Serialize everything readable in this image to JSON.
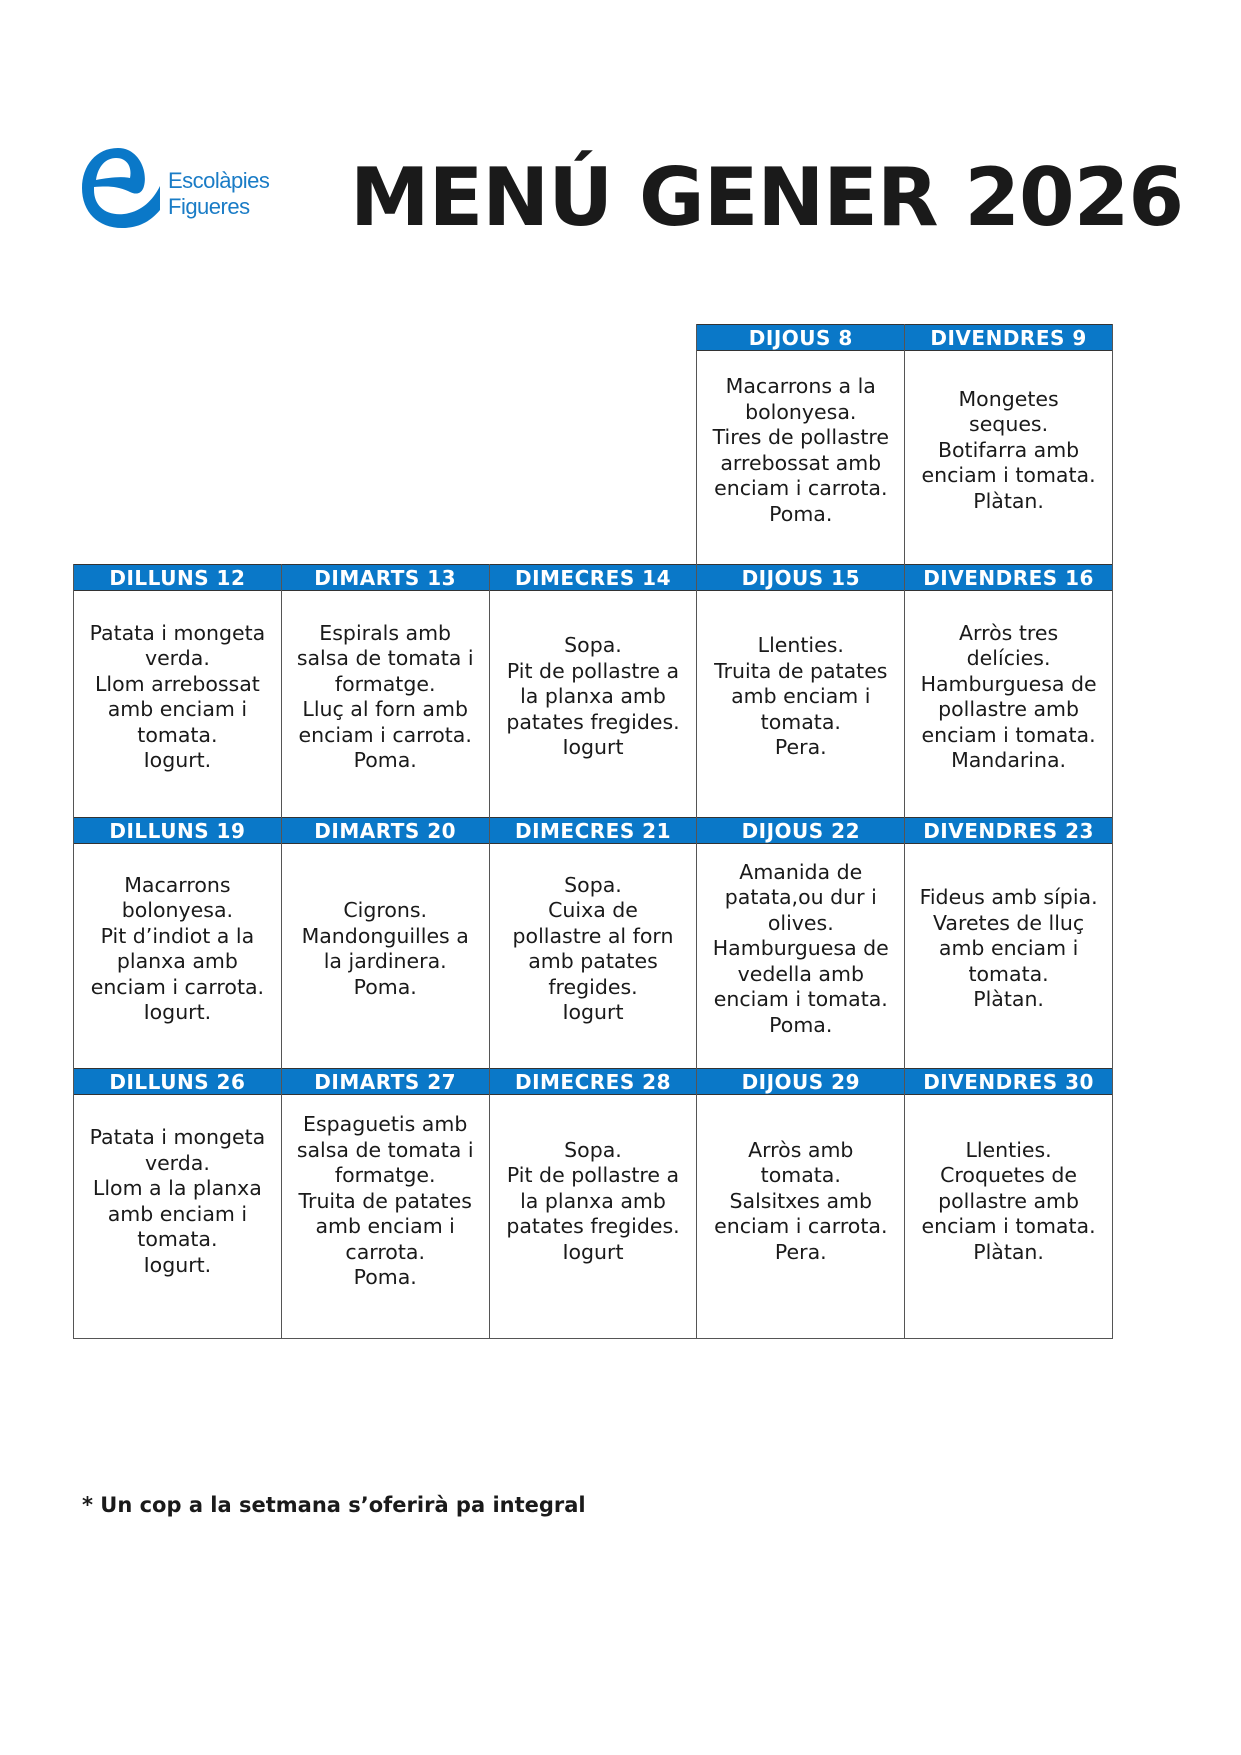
{
  "logo": {
    "line1": "Escolàpies",
    "line2": "Figueres",
    "color": "#0a78c8"
  },
  "title": "MENÚ GENER 2026",
  "accent_color": "#0a78c8",
  "weeks": [
    {
      "days": [
        null,
        null,
        null,
        {
          "header": "DIJOUS 8",
          "menu": "Macarrons a la\nbolonyesa.\nTires de pollastre\narrebossat amb\nenciam i carrota.\nPoma."
        },
        {
          "header": "DIVENDRES 9",
          "menu": "Mongetes\nseques.\nBotifarra amb\nenciam i tomata.\nPlàtan."
        }
      ]
    },
    {
      "days": [
        {
          "header": "DILLUNS 12",
          "menu": "Patata i mongeta\nverda.\nLlom arrebossat\namb enciam i\ntomata.\nIogurt."
        },
        {
          "header": "DIMARTS 13",
          "menu": "Espirals amb\nsalsa de tomata i\nformatge.\nLluç al forn amb\nenciam i carrota.\nPoma."
        },
        {
          "header": "DIMECRES 14",
          "menu": "Sopa.\nPit de pollastre a\nla planxa amb\npatates fregides.\nIogurt"
        },
        {
          "header": "DIJOUS 15",
          "menu": "Llenties.\nTruita de patates\namb enciam i\ntomata.\nPera."
        },
        {
          "header": "DIVENDRES 16",
          "menu": "Arròs tres\ndelícies.\nHamburguesa de\npollastre amb\nenciam i tomata.\nMandarina."
        }
      ]
    },
    {
      "days": [
        {
          "header": "DILLUNS 19",
          "menu": "Macarrons\nbolonyesa.\nPit d’indiot a la\nplanxa amb\nenciam i carrota.\nIogurt."
        },
        {
          "header": "DIMARTS 20",
          "menu": "Cigrons.\nMandonguilles a\nla jardinera.\nPoma."
        },
        {
          "header": "DIMECRES 21",
          "menu": "Sopa.\nCuixa de\npollastre al forn\namb patates\nfregides.\nIogurt"
        },
        {
          "header": "DIJOUS 22",
          "menu": "Amanida de\npatata,ou dur i\nolives.\nHamburguesa de\nvedella amb\nenciam i tomata.\nPoma."
        },
        {
          "header": "DIVENDRES 23",
          "menu": "Fideus amb sípia.\nVaretes de lluç\namb enciam i\ntomata.\nPlàtan."
        }
      ]
    },
    {
      "days": [
        {
          "header": "DILLUNS 26",
          "menu": "Patata i mongeta\nverda.\nLlom a la planxa\namb enciam i\ntomata.\nIogurt."
        },
        {
          "header": "DIMARTS 27",
          "menu": "Espaguetis amb\nsalsa de tomata i\nformatge.\nTruita de patates\namb enciam i\ncarrota.\nPoma."
        },
        {
          "header": "DIMECRES 28",
          "menu": "Sopa.\nPit de pollastre a\nla planxa amb\npatates fregides.\nIogurt"
        },
        {
          "header": "DIJOUS 29",
          "menu": "Arròs amb\ntomata.\nSalsitxes amb\nenciam i carrota.\nPera."
        },
        {
          "header": "DIVENDRES 30",
          "menu": "Llenties.\nCroquetes de\npollastre amb\nenciam i tomata.\nPlàtan."
        }
      ]
    }
  ],
  "footnote": "* Un cop a la setmana s’oferirà pa integral"
}
